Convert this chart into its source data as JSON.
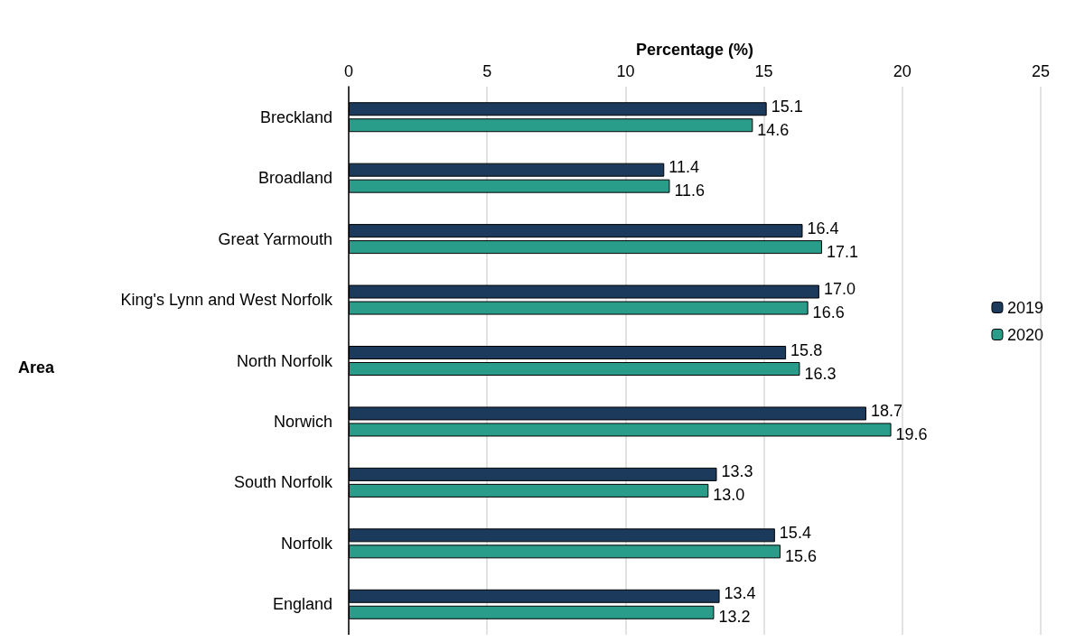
{
  "chart_data": {
    "type": "bar",
    "orientation": "horizontal",
    "xlabel": "Percentage (%)",
    "ylabel": "Area",
    "categories": [
      "Breckland",
      "Broadland",
      "Great Yarmouth",
      "King's Lynn and West Norfolk",
      "North Norfolk",
      "Norwich",
      "South Norfolk",
      "Norfolk",
      "England"
    ],
    "series": [
      {
        "name": "2019",
        "color": "#1b3a5c",
        "values": [
          15.1,
          11.4,
          16.4,
          17.0,
          15.8,
          18.7,
          13.3,
          15.4,
          13.4
        ],
        "value_labels": [
          "15.1",
          "11.4",
          "16.4",
          "17.0",
          "15.8",
          "18.7",
          "13.3",
          "15.4",
          "13.4"
        ]
      },
      {
        "name": "2020",
        "color": "#2a9d8a",
        "values": [
          14.6,
          11.6,
          17.1,
          16.6,
          16.3,
          19.6,
          13.0,
          15.6,
          13.2
        ],
        "value_labels": [
          "14.6",
          "11.6",
          "17.1",
          "16.6",
          "16.3",
          "19.6",
          "13.0",
          "15.6",
          "13.2"
        ]
      }
    ],
    "xlim": [
      0,
      25
    ],
    "xticks": [
      0,
      5,
      10,
      15,
      20,
      25
    ],
    "grid": "x",
    "legend": "right"
  }
}
